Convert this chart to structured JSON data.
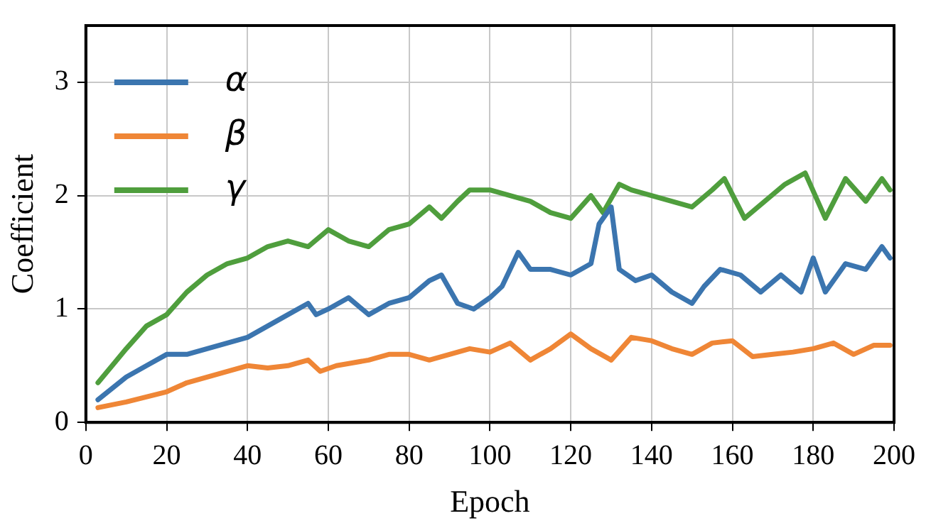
{
  "chart_data": {
    "type": "line",
    "xlabel": "Epoch",
    "ylabel": "Coefficient",
    "xlim": [
      0,
      200
    ],
    "xticks": [
      0,
      20,
      40,
      60,
      80,
      100,
      120,
      140,
      160,
      180,
      200
    ],
    "ylim": [
      0,
      3.5
    ],
    "yticks": [
      0,
      1,
      2,
      3
    ],
    "grid": true,
    "legend": "top left",
    "marker": "none",
    "line_style": "solid",
    "series": [
      {
        "name": "α",
        "color": "#3b75af",
        "x": [
          3,
          10,
          15,
          20,
          25,
          30,
          35,
          40,
          45,
          50,
          55,
          57,
          60,
          65,
          70,
          75,
          80,
          85,
          88,
          92,
          96,
          100,
          103,
          107,
          110,
          115,
          120,
          125,
          127,
          130,
          132,
          136,
          140,
          145,
          150,
          153,
          157,
          162,
          167,
          172,
          177,
          180,
          183,
          188,
          193,
          197,
          199
        ],
        "values": [
          0.2,
          0.4,
          0.5,
          0.6,
          0.6,
          0.65,
          0.7,
          0.75,
          0.85,
          0.95,
          1.05,
          0.95,
          1.0,
          1.1,
          0.95,
          1.05,
          1.1,
          1.25,
          1.3,
          1.05,
          1.0,
          1.1,
          1.2,
          1.5,
          1.35,
          1.35,
          1.3,
          1.4,
          1.75,
          1.9,
          1.35,
          1.25,
          1.3,
          1.15,
          1.05,
          1.2,
          1.35,
          1.3,
          1.15,
          1.3,
          1.15,
          1.45,
          1.15,
          1.4,
          1.35,
          1.55,
          1.45
        ]
      },
      {
        "name": "β",
        "color": "#ef8636",
        "x": [
          3,
          10,
          20,
          25,
          30,
          35,
          40,
          45,
          50,
          55,
          58,
          62,
          70,
          75,
          80,
          85,
          90,
          95,
          100,
          105,
          110,
          115,
          120,
          125,
          130,
          135,
          140,
          145,
          150,
          155,
          160,
          165,
          170,
          175,
          180,
          185,
          190,
          195,
          199
        ],
        "values": [
          0.13,
          0.18,
          0.27,
          0.35,
          0.4,
          0.45,
          0.5,
          0.48,
          0.5,
          0.55,
          0.45,
          0.5,
          0.55,
          0.6,
          0.6,
          0.55,
          0.6,
          0.65,
          0.62,
          0.7,
          0.55,
          0.65,
          0.78,
          0.65,
          0.55,
          0.75,
          0.72,
          0.65,
          0.6,
          0.7,
          0.72,
          0.58,
          0.6,
          0.62,
          0.65,
          0.7,
          0.6,
          0.68,
          0.68
        ]
      },
      {
        "name": "γ",
        "color": "#4f9e3d",
        "x": [
          3,
          10,
          15,
          20,
          25,
          30,
          35,
          40,
          45,
          50,
          55,
          60,
          65,
          70,
          75,
          80,
          85,
          88,
          92,
          95,
          100,
          105,
          110,
          115,
          120,
          125,
          128,
          132,
          135,
          140,
          145,
          150,
          155,
          158,
          163,
          168,
          173,
          178,
          183,
          188,
          193,
          197,
          199
        ],
        "values": [
          0.35,
          0.65,
          0.85,
          0.95,
          1.15,
          1.3,
          1.4,
          1.45,
          1.55,
          1.6,
          1.55,
          1.7,
          1.6,
          1.55,
          1.7,
          1.75,
          1.9,
          1.8,
          1.95,
          2.05,
          2.05,
          2.0,
          1.95,
          1.85,
          1.8,
          2.0,
          1.85,
          2.1,
          2.05,
          2.0,
          1.95,
          1.9,
          2.05,
          2.15,
          1.8,
          1.95,
          2.1,
          2.2,
          1.8,
          2.15,
          1.95,
          2.15,
          2.05
        ]
      }
    ]
  }
}
